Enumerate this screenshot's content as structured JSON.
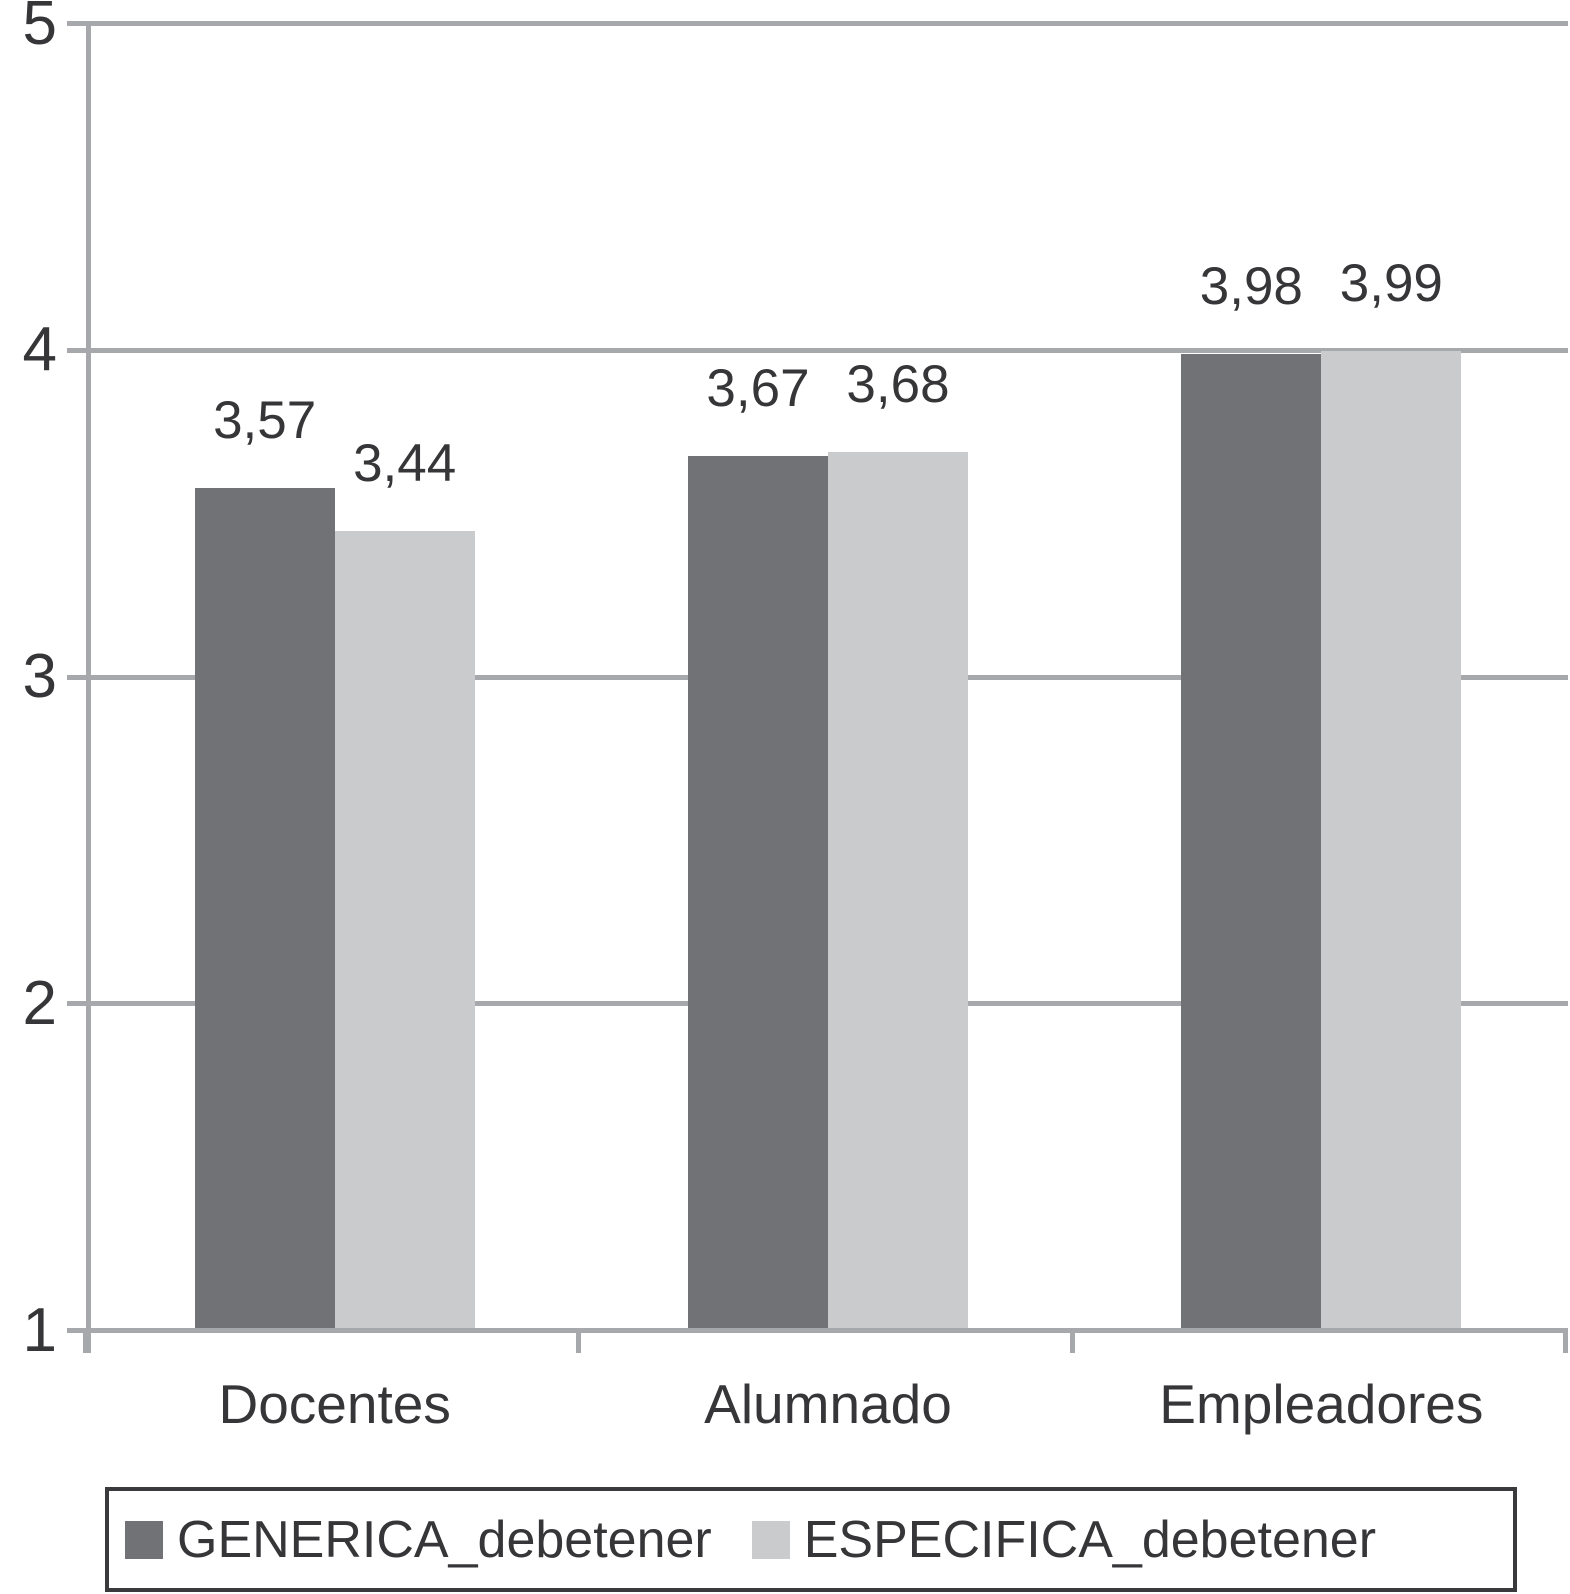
{
  "chart_data": {
    "type": "bar",
    "title": "",
    "xlabel": "",
    "ylabel": "",
    "categories": [
      "Docentes",
      "Alumnado",
      "Empleadores"
    ],
    "series": [
      {
        "name": "GENERICA_debetener",
        "color": "#717275",
        "values": [
          3.57,
          3.67,
          3.98
        ],
        "value_labels": [
          "3,57",
          "3,67",
          "3,98"
        ]
      },
      {
        "name": "ESPECIFICA_debetener",
        "color": "#CACBCD",
        "values": [
          3.44,
          3.68,
          3.99
        ],
        "value_labels": [
          "3,44",
          "3,68",
          "3,99"
        ]
      }
    ],
    "ylim": [
      1,
      5
    ],
    "ytick_labels": [
      "1",
      "2",
      "3",
      "4",
      "5"
    ],
    "grid": "horizontal gridlines on, at each integer tick",
    "decimal_separator": ",",
    "legend_position": "bottom, boxed"
  },
  "colors": {
    "background": "#FFFFFF",
    "gridline": "#A6A8AB",
    "axis": "#A6A8AB",
    "text": "#363639",
    "legend_border": "#3A3A3C"
  }
}
